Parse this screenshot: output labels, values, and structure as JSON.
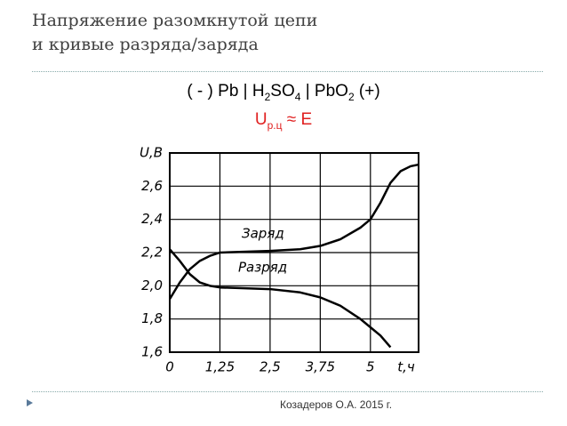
{
  "slide_title": [
    "Напряжение разомкнутой цепи",
    "и кривые разряда/заряда"
  ],
  "formula": [
    "( - ) Pb | H",
    "2",
    "SO",
    "4",
    " | PbO",
    "2",
    " (+)"
  ],
  "emf": {
    "u": "U",
    "sub": "р.ц",
    "rest": " ≈ E"
  },
  "footer": "Козадеров О.А. 2015 г.",
  "chart_data": {
    "type": "line",
    "x": [
      0,
      0.25,
      0.5,
      0.75,
      1,
      1.25,
      2.5,
      3.25,
      3.75,
      4.25,
      4.75,
      5,
      5.25,
      5.5,
      5.75,
      6,
      6.2
    ],
    "series": [
      {
        "name": "Заряд",
        "color": "#000000",
        "values": [
          1.92,
          2.02,
          2.1,
          2.15,
          2.18,
          2.2,
          2.21,
          2.22,
          2.24,
          2.28,
          2.35,
          2.4,
          2.5,
          2.62,
          2.69,
          2.72,
          2.73
        ]
      },
      {
        "name": "Разряд",
        "color": "#000000",
        "values": [
          2.22,
          2.15,
          2.07,
          2.02,
          2.0,
          1.99,
          1.98,
          1.96,
          1.93,
          1.88,
          1.8,
          1.75,
          1.7,
          1.63,
          null,
          null,
          null
        ]
      }
    ],
    "x_label": "t,ч",
    "y_label": "U,В",
    "xlim": [
      0,
      6.2
    ],
    "ylim": [
      1.6,
      2.8
    ],
    "xticks": [
      0,
      {
        "value": 1.25,
        "label": "1,25"
      },
      {
        "value": 2.5,
        "label": "2,5"
      },
      {
        "value": 3.75,
        "label": "3,75"
      },
      5
    ],
    "yticks": [
      {
        "value": 1.6,
        "label": "1,6"
      },
      {
        "value": 1.8,
        "label": "1,8"
      },
      {
        "value": 2.0,
        "label": "2,0"
      },
      {
        "value": 2.2,
        "label": "2,2"
      },
      {
        "value": 2.4,
        "label": "2,4"
      },
      {
        "value": 2.6,
        "label": "2,6"
      }
    ],
    "grid": true
  }
}
